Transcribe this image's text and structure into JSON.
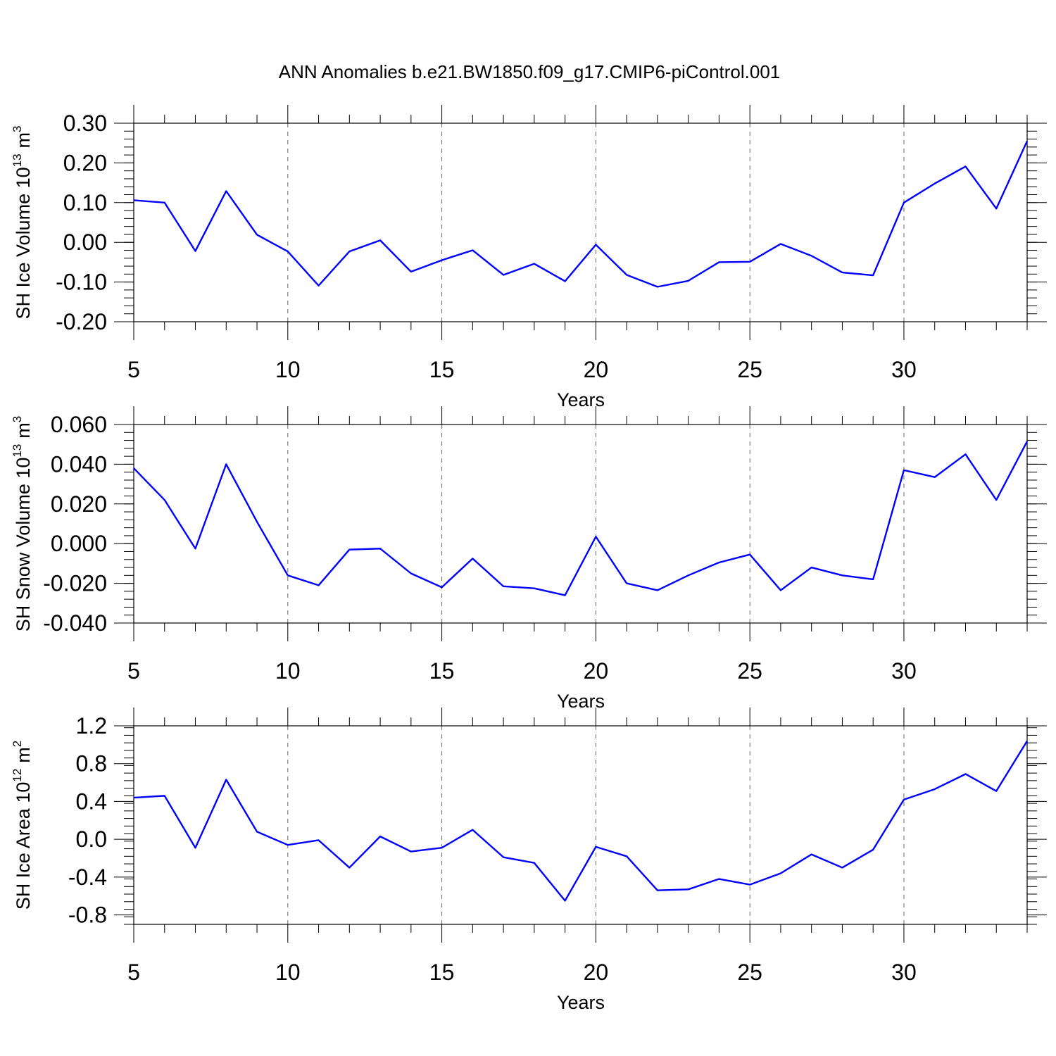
{
  "title": "ANN Anomalies b.e21.BW1850.f09_g17.CMIP6-piControl.001",
  "colors": {
    "line": "#0000ff",
    "axis": "#000000",
    "grid": "#666666"
  },
  "chart_data": [
    {
      "type": "line",
      "xlabel": "Years",
      "ylabel": {
        "text": "SH Ice Volume 10",
        "exp": "13",
        "unit": "m",
        "unit_exp": "3"
      },
      "xlim": [
        5,
        34
      ],
      "ylim": [
        -0.2,
        0.3
      ],
      "x_ticks": [
        "5",
        "10",
        "15",
        "20",
        "25",
        "30"
      ],
      "y_ticks": [
        "-0.20",
        "-0.10",
        "0.00",
        "0.10",
        "0.20",
        "0.30"
      ],
      "grid": "vertical dashed lines at major x ticks",
      "x": [
        5,
        6,
        7,
        8,
        9,
        10,
        11,
        12,
        13,
        14,
        15,
        16,
        17,
        18,
        19,
        20,
        21,
        22,
        23,
        24,
        25,
        26,
        27,
        28,
        29,
        30,
        31,
        32,
        33,
        34
      ],
      "values": [
        0.106,
        0.1,
        -0.022,
        0.129,
        0.019,
        -0.023,
        -0.109,
        -0.023,
        0.005,
        -0.074,
        -0.045,
        -0.02,
        -0.082,
        -0.054,
        -0.098,
        -0.006,
        -0.082,
        -0.112,
        -0.097,
        -0.05,
        -0.049,
        -0.004,
        -0.034,
        -0.076,
        -0.083,
        0.1,
        0.148,
        0.191,
        0.085,
        0.255
      ]
    },
    {
      "type": "line",
      "xlabel": "Years",
      "ylabel": {
        "text": "SH Snow Volume 10",
        "exp": "13",
        "unit": "m",
        "unit_exp": "3"
      },
      "xlim": [
        5,
        34
      ],
      "ylim": [
        -0.04,
        0.06
      ],
      "x_ticks": [
        "5",
        "10",
        "15",
        "20",
        "25",
        "30"
      ],
      "y_ticks": [
        "-0.040",
        "-0.020",
        "0.000",
        "0.020",
        "0.040",
        "0.060"
      ],
      "grid": "vertical dashed lines at major x ticks",
      "x": [
        5,
        6,
        7,
        8,
        9,
        10,
        11,
        12,
        13,
        14,
        15,
        16,
        17,
        18,
        19,
        20,
        21,
        22,
        23,
        24,
        25,
        26,
        27,
        28,
        29,
        30,
        31,
        32,
        33,
        34
      ],
      "values": [
        0.038,
        0.022,
        -0.0025,
        0.04,
        0.011,
        -0.016,
        -0.021,
        -0.003,
        -0.0025,
        -0.015,
        -0.022,
        -0.0075,
        -0.0215,
        -0.0225,
        -0.026,
        0.0035,
        -0.02,
        -0.0235,
        -0.016,
        -0.0095,
        -0.0055,
        -0.0235,
        -0.012,
        -0.016,
        -0.018,
        0.037,
        0.0335,
        0.045,
        0.022,
        0.0515
      ]
    },
    {
      "type": "line",
      "xlabel": "Years",
      "ylabel": {
        "text": "SH Ice Area 10",
        "exp": "12",
        "unit": "m",
        "unit_exp": "2"
      },
      "xlim": [
        5,
        34
      ],
      "ylim": [
        -0.9,
        1.2
      ],
      "x_ticks": [
        "5",
        "10",
        "15",
        "20",
        "25",
        "30"
      ],
      "y_ticks": [
        "-0.8",
        "-0.4",
        "0.0",
        "0.4",
        "0.8",
        "1.2"
      ],
      "y_tick_values": [
        -0.8,
        -0.4,
        0.0,
        0.4,
        0.8,
        1.2
      ],
      "grid": "vertical dashed lines at major x ticks",
      "x": [
        5,
        6,
        7,
        8,
        9,
        10,
        11,
        12,
        13,
        14,
        15,
        16,
        17,
        18,
        19,
        20,
        21,
        22,
        23,
        24,
        25,
        26,
        27,
        28,
        29,
        30,
        31,
        32,
        33,
        34
      ],
      "values": [
        0.44,
        0.46,
        -0.09,
        0.63,
        0.08,
        -0.06,
        -0.01,
        -0.3,
        0.03,
        -0.13,
        -0.09,
        0.1,
        -0.19,
        -0.25,
        -0.65,
        -0.08,
        -0.18,
        -0.54,
        -0.53,
        -0.42,
        -0.48,
        -0.36,
        -0.16,
        -0.3,
        -0.11,
        0.42,
        0.53,
        0.69,
        0.51,
        1.04
      ]
    }
  ]
}
